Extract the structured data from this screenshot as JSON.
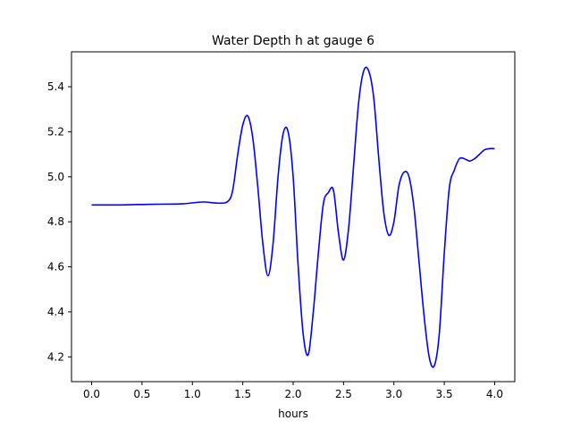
{
  "chart_data": {
    "type": "line",
    "title": "Water Depth h at gauge 6",
    "xlabel": "hours",
    "ylabel": "",
    "xlim": [
      -0.2,
      4.2
    ],
    "ylim": [
      4.09,
      5.555
    ],
    "grid": false,
    "legend": "none",
    "x_ticks": [
      0.0,
      0.5,
      1.0,
      1.5,
      2.0,
      2.5,
      3.0,
      3.5,
      4.0
    ],
    "x_tick_labels": [
      "0.0",
      "0.5",
      "1.0",
      "1.5",
      "2.0",
      "2.5",
      "3.0",
      "3.5",
      "4.0"
    ],
    "y_ticks": [
      4.2,
      4.4,
      4.6,
      4.8,
      5.0,
      5.2,
      5.4
    ],
    "y_tick_labels": [
      "4.2",
      "4.4",
      "4.6",
      "4.8",
      "5.0",
      "5.2",
      "5.4"
    ],
    "series": [
      {
        "color": "#0000ff",
        "x": [
          0.0,
          0.3,
          0.6,
          0.9,
          1.1,
          1.25,
          1.35,
          1.4,
          1.45,
          1.5,
          1.55,
          1.6,
          1.65,
          1.7,
          1.75,
          1.8,
          1.85,
          1.9,
          1.95,
          2.0,
          2.05,
          2.1,
          2.15,
          2.2,
          2.25,
          2.3,
          2.35,
          2.4,
          2.45,
          2.5,
          2.55,
          2.6,
          2.65,
          2.7,
          2.75,
          2.8,
          2.85,
          2.9,
          2.95,
          3.0,
          3.05,
          3.1,
          3.15,
          3.2,
          3.25,
          3.3,
          3.35,
          3.4,
          3.45,
          3.5,
          3.55,
          3.6,
          3.65,
          3.7,
          3.75,
          3.8,
          3.85,
          3.9,
          3.95,
          4.0
        ],
        "values": [
          4.875,
          4.875,
          4.878,
          4.88,
          4.888,
          4.883,
          4.89,
          4.94,
          5.1,
          5.23,
          5.27,
          5.17,
          4.95,
          4.7,
          4.56,
          4.7,
          5.0,
          5.19,
          5.2,
          5.0,
          4.6,
          4.3,
          4.21,
          4.4,
          4.66,
          4.88,
          4.93,
          4.94,
          4.75,
          4.63,
          4.77,
          5.05,
          5.33,
          5.47,
          5.47,
          5.35,
          5.08,
          4.84,
          4.74,
          4.8,
          4.96,
          5.02,
          5.0,
          4.86,
          4.62,
          4.38,
          4.2,
          4.16,
          4.3,
          4.66,
          4.95,
          5.03,
          5.08,
          5.08,
          5.07,
          5.08,
          5.1,
          5.12,
          5.125,
          5.125
        ]
      }
    ]
  }
}
